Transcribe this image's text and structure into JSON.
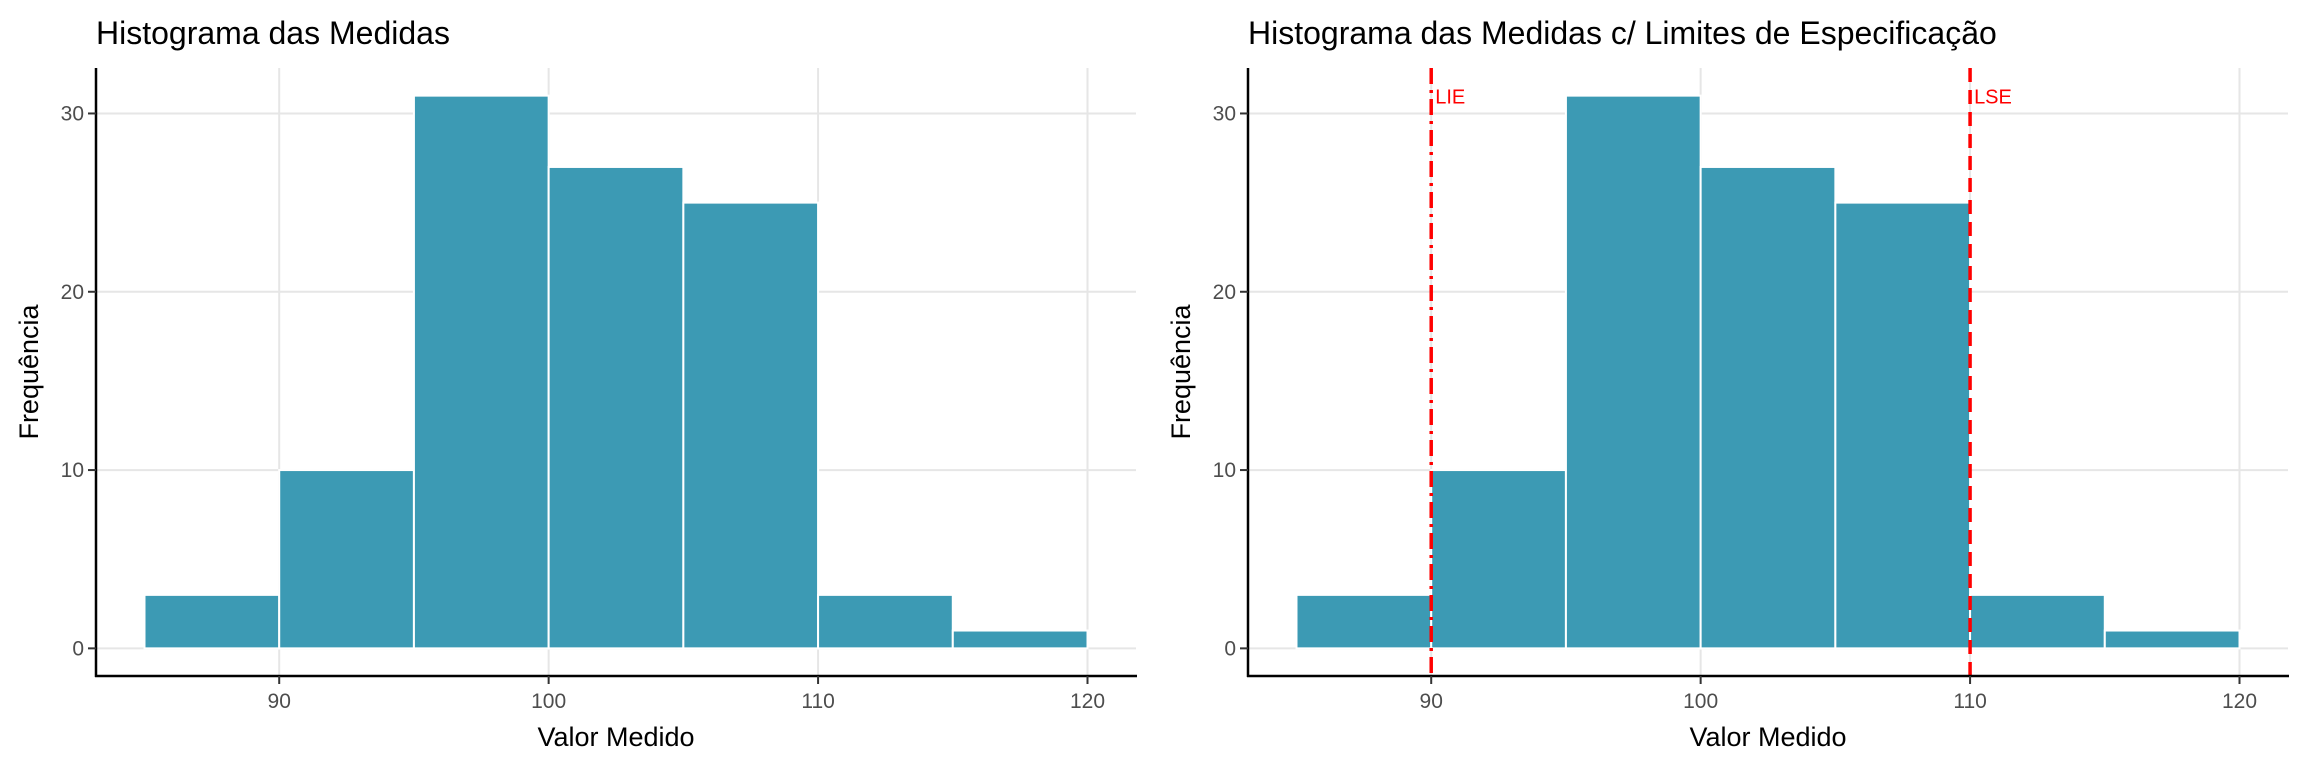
{
  "chart_data": [
    {
      "type": "bar",
      "title": "Histograma das Medidas",
      "xlabel": "Valor Medido",
      "ylabel": "Frequência",
      "bins": [
        {
          "x0": 85,
          "x1": 90,
          "count": 3
        },
        {
          "x0": 90,
          "x1": 95,
          "count": 10
        },
        {
          "x0": 95,
          "x1": 100,
          "count": 31
        },
        {
          "x0": 100,
          "x1": 105,
          "count": 27
        },
        {
          "x0": 105,
          "x1": 110,
          "count": 25
        },
        {
          "x0": 110,
          "x1": 115,
          "count": 3
        },
        {
          "x0": 115,
          "x1": 120,
          "count": 1
        }
      ],
      "xlim": [
        83.2,
        121.8
      ],
      "ylim": [
        -1.55,
        32.55
      ],
      "xticks": [
        90,
        100,
        110,
        120
      ],
      "yticks": [
        0,
        10,
        20,
        30
      ],
      "grid": true,
      "bar_color": "#3c9ab4",
      "bar_edge_color": "#ffffff",
      "reference_lines": []
    },
    {
      "type": "bar",
      "title": "Histograma das Medidas c/ Limites de Especificação",
      "xlabel": "Valor Medido",
      "ylabel": "Frequência",
      "bins": [
        {
          "x0": 85,
          "x1": 90,
          "count": 3
        },
        {
          "x0": 90,
          "x1": 95,
          "count": 10
        },
        {
          "x0": 95,
          "x1": 100,
          "count": 31
        },
        {
          "x0": 100,
          "x1": 105,
          "count": 27
        },
        {
          "x0": 105,
          "x1": 110,
          "count": 25
        },
        {
          "x0": 110,
          "x1": 115,
          "count": 3
        },
        {
          "x0": 115,
          "x1": 120,
          "count": 1
        }
      ],
      "xlim": [
        83.2,
        121.8
      ],
      "ylim": [
        -1.55,
        32.55
      ],
      "xticks": [
        90,
        100,
        110,
        120
      ],
      "yticks": [
        0,
        10,
        20,
        30
      ],
      "grid": true,
      "bar_color": "#3c9ab4",
      "bar_edge_color": "#ffffff",
      "reference_lines": [
        {
          "x": 90,
          "label": "LIE",
          "color": "#ff0000",
          "style": "dashdot"
        },
        {
          "x": 110,
          "label": "LSE",
          "color": "#ff0000",
          "style": "dashed"
        }
      ]
    }
  ]
}
